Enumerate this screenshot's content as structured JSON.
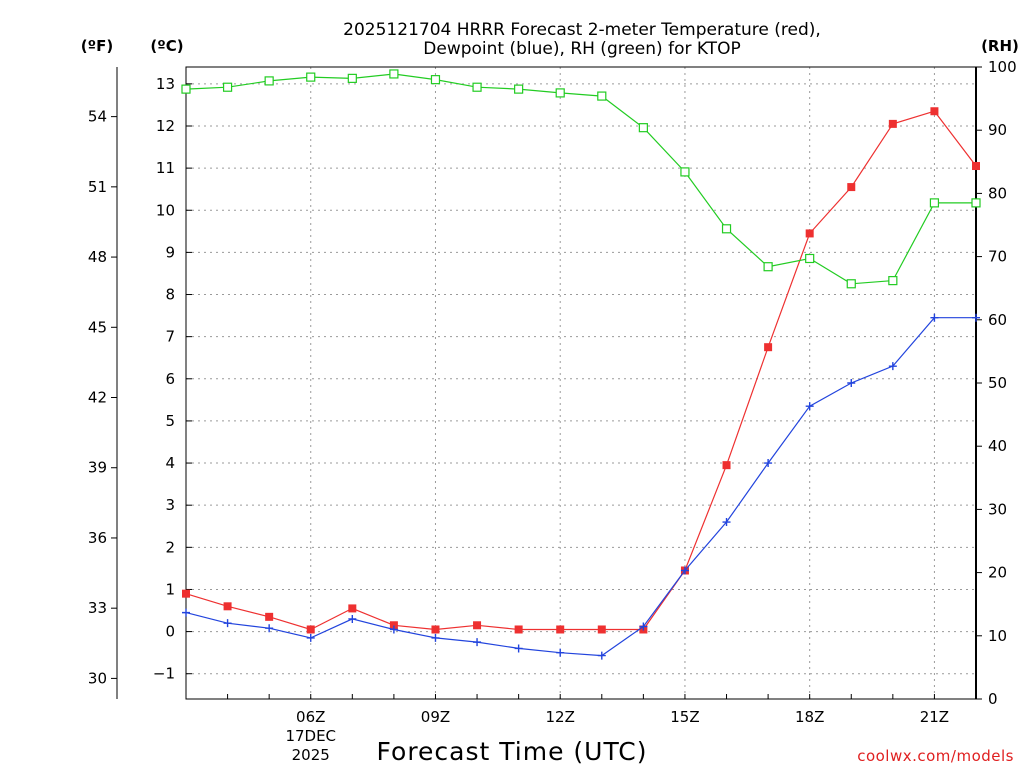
{
  "chart_data": {
    "type": "line",
    "title_line1": "2025121704 HRRR Forecast 2-meter Temperature (red),",
    "title_line2": "Dewpoint (blue), RH (green) for KTOP",
    "xlabel": "Forecast Time (UTC)",
    "credit": "coolwx.com/models",
    "x_hours": [
      3,
      4,
      5,
      6,
      7,
      8,
      9,
      10,
      11,
      12,
      13,
      14,
      15,
      16,
      17,
      18,
      19,
      20,
      21,
      22
    ],
    "x_ticks": [
      {
        "hour": 6,
        "label": "06Z",
        "sub1": "17DEC",
        "sub2": "2025"
      },
      {
        "hour": 9,
        "label": "09Z"
      },
      {
        "hour": 12,
        "label": "12Z"
      },
      {
        "hour": 15,
        "label": "15Z"
      },
      {
        "hour": 18,
        "label": "18Z"
      },
      {
        "hour": 21,
        "label": "21Z"
      }
    ],
    "xlim": [
      3,
      22
    ],
    "left_c_axis": {
      "unit": "(ºC)",
      "ylim": [
        -1.6,
        13.4
      ],
      "ticks": [
        -1,
        0,
        1,
        2,
        3,
        4,
        5,
        6,
        7,
        8,
        9,
        10,
        11,
        12,
        13
      ],
      "tick_labels": [
        "−1",
        "0",
        "1",
        "2",
        "3",
        "4",
        "5",
        "6",
        "7",
        "8",
        "9",
        "10",
        "11",
        "12",
        "13"
      ]
    },
    "left_f_axis": {
      "unit": "(ºF)",
      "ticks": [
        30,
        33,
        36,
        39,
        42,
        45,
        48,
        51,
        54
      ],
      "tick_labels": [
        "30",
        "33",
        "36",
        "39",
        "42",
        "45",
        "48",
        "51",
        "54"
      ]
    },
    "right_rh_axis": {
      "unit": "(RH)",
      "ylim": [
        0,
        100
      ],
      "ticks": [
        0,
        10,
        20,
        30,
        40,
        50,
        60,
        70,
        80,
        90,
        100
      ],
      "tick_labels": [
        "0",
        "10",
        "20",
        "30",
        "40",
        "50",
        "60",
        "70",
        "80",
        "90",
        "100"
      ]
    },
    "series": [
      {
        "name": "Temperature",
        "axis": "celsius",
        "color": "#ee3030",
        "marker": "filled-square",
        "values": [
          0.9,
          0.6,
          0.35,
          0.05,
          0.55,
          0.15,
          0.05,
          0.15,
          0.05,
          0.05,
          0.05,
          0.05,
          1.45,
          3.95,
          6.75,
          9.45,
          10.55,
          12.05,
          12.35,
          11.05
        ]
      },
      {
        "name": "Dewpoint",
        "axis": "celsius",
        "color": "#2244dd",
        "marker": "plus",
        "values": [
          0.45,
          0.2,
          0.08,
          -0.15,
          0.3,
          0.05,
          -0.15,
          -0.25,
          -0.4,
          -0.5,
          -0.57,
          0.12,
          1.45,
          2.6,
          4.0,
          5.35,
          5.9,
          6.3,
          7.45,
          7.45
        ]
      },
      {
        "name": "RH",
        "axis": "rh",
        "color": "#22cc22",
        "marker": "open-square",
        "values": [
          96.5,
          96.8,
          97.8,
          98.4,
          98.2,
          98.9,
          98.0,
          96.8,
          96.5,
          95.9,
          95.4,
          90.4,
          83.4,
          74.4,
          68.4,
          69.7,
          65.7,
          66.2,
          78.5,
          78.5
        ]
      }
    ]
  }
}
